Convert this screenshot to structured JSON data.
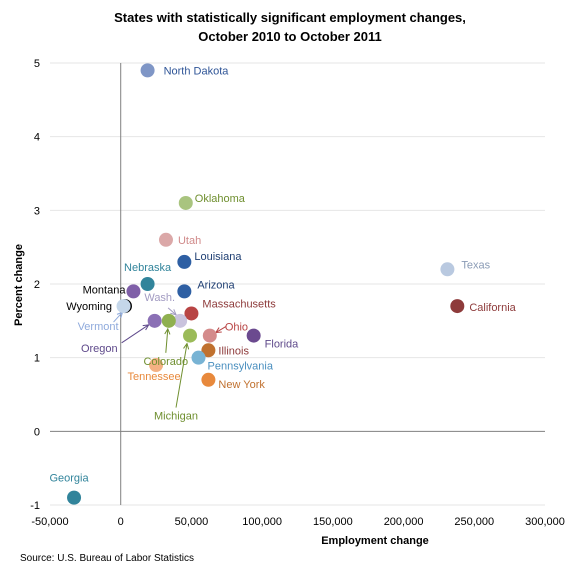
{
  "chart_data": {
    "type": "scatter",
    "title": "States with statistically significant employment changes,",
    "subtitle": "October 2010 to October 2011",
    "xlabel": "Employment change",
    "ylabel": "Percent change",
    "xlim": [
      -50000,
      300000
    ],
    "ylim": [
      -1,
      5
    ],
    "xticks": [
      "-50,000",
      "0",
      "50,000",
      "100,000",
      "150,000",
      "200,000",
      "250,000",
      "300,000"
    ],
    "yticks": [
      "-1",
      "0",
      "1",
      "2",
      "3",
      "4",
      "5"
    ],
    "grid": "horizontal",
    "points": [
      {
        "name": "North Dakota",
        "x": 19000,
        "y": 4.9,
        "color": "#7f96c6",
        "label_color": "#2f5597"
      },
      {
        "name": "Oklahoma",
        "x": 46000,
        "y": 3.1,
        "color": "#a9c47f",
        "label_color": "#6f8f2f"
      },
      {
        "name": "Utah",
        "x": 32000,
        "y": 2.6,
        "color": "#dba8a8",
        "label_color": "#d08a8a"
      },
      {
        "name": "Louisiana",
        "x": 45000,
        "y": 2.3,
        "color": "#2e5fa3",
        "label_color": "#1f3f73"
      },
      {
        "name": "Nebraska",
        "x": 19000,
        "y": 2.0,
        "color": "#31849b",
        "label_color": "#31849b"
      },
      {
        "name": "Texas",
        "x": 231000,
        "y": 2.2,
        "color": "#b9c9e0",
        "label_color": "#8a9bb5"
      },
      {
        "name": "Arizona",
        "x": 45000,
        "y": 1.9,
        "color": "#2e5fa3",
        "label_color": "#1f3f73"
      },
      {
        "name": "Montana",
        "x": 9000,
        "y": 1.9,
        "color": "#7f5fa8",
        "label_color": "#000000"
      },
      {
        "name": "Wyoming",
        "x": 3000,
        "y": 1.7,
        "color": "#000000",
        "label_color": "#000000"
      },
      {
        "name": "California",
        "x": 238000,
        "y": 1.7,
        "color": "#8e3b3b",
        "label_color": "#8e3b3b"
      },
      {
        "name": "Massachusetts",
        "x": 50000,
        "y": 1.6,
        "color": "#b84444",
        "label_color": "#8e3b3b"
      },
      {
        "name": "Wash.",
        "x": 42000,
        "y": 1.5,
        "color": "#c9c3dd",
        "label_color": "#a29bc2"
      },
      {
        "name": "Vermont",
        "x": 2000,
        "y": 1.7,
        "color": "#c5d7ea",
        "label_color": "#8faadc"
      },
      {
        "name": "Oregon",
        "x": 24000,
        "y": 1.5,
        "color": "#8b70b5",
        "label_color": "#5f4a8b"
      },
      {
        "name": "Colorado",
        "x": 34000,
        "y": 1.5,
        "color": "#8fb04f",
        "label_color": "#6f8f2f"
      },
      {
        "name": "Ohio",
        "x": 63000,
        "y": 1.3,
        "color": "#d48b8b",
        "label_color": "#b84444"
      },
      {
        "name": "Florida",
        "x": 94000,
        "y": 1.3,
        "color": "#6b4a8f",
        "label_color": "#5f4a8b"
      },
      {
        "name": "Michigan",
        "x": 49000,
        "y": 1.3,
        "color": "#9bbb59",
        "label_color": "#6f8f2f"
      },
      {
        "name": "Illinois",
        "x": 62000,
        "y": 1.1,
        "color": "#c0712f",
        "label_color": "#8e3b3b"
      },
      {
        "name": "Pennsylvania",
        "x": 55000,
        "y": 1.0,
        "color": "#78b3d4",
        "label_color": "#4a8fbf"
      },
      {
        "name": "Tennessee",
        "x": 25000,
        "y": 0.9,
        "color": "#f4b183",
        "label_color": "#e8893c"
      },
      {
        "name": "New York",
        "x": 62000,
        "y": 0.7,
        "color": "#e8893c",
        "label_color": "#c0712f"
      },
      {
        "name": "Georgia",
        "x": -33000,
        "y": -0.9,
        "color": "#31849b",
        "label_color": "#31849b"
      }
    ]
  },
  "source": "Source: U.S. Bureau of Labor Statistics"
}
